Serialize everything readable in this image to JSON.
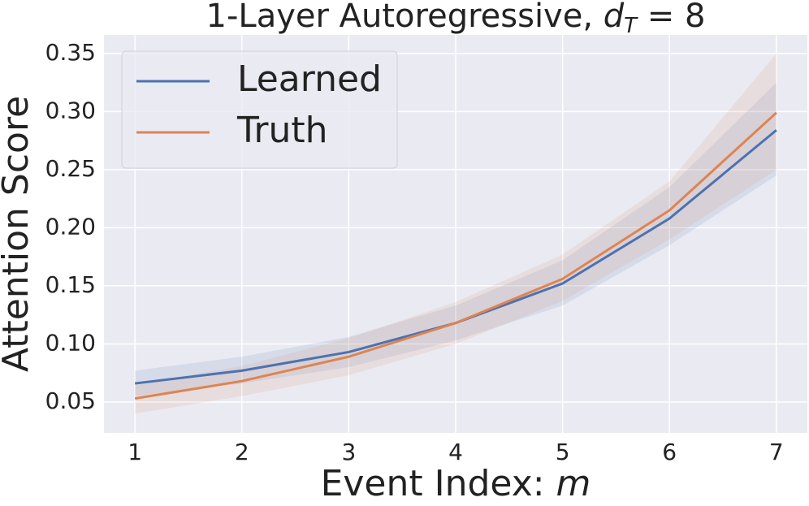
{
  "chart_data": {
    "type": "line",
    "title_parts": [
      "1-Layer Autoregressive, ",
      "d",
      "T",
      " = 8"
    ],
    "xlabel_parts": [
      "Event Index: ",
      "m"
    ],
    "ylabel": "Attention Score",
    "x": [
      1,
      2,
      3,
      4,
      5,
      6,
      7
    ],
    "series": [
      {
        "name": "Learned",
        "color": "#4c72b0",
        "values": [
          0.066,
          0.077,
          0.093,
          0.118,
          0.152,
          0.208,
          0.284
        ],
        "lower": [
          0.055,
          0.066,
          0.08,
          0.103,
          0.133,
          0.185,
          0.245
        ],
        "upper": [
          0.077,
          0.089,
          0.106,
          0.133,
          0.172,
          0.235,
          0.325
        ]
      },
      {
        "name": "Truth",
        "color": "#dd8452",
        "values": [
          0.053,
          0.068,
          0.089,
          0.118,
          0.156,
          0.215,
          0.299
        ],
        "lower": [
          0.04,
          0.055,
          0.073,
          0.1,
          0.137,
          0.19,
          0.25
        ],
        "upper": [
          0.065,
          0.081,
          0.105,
          0.136,
          0.177,
          0.24,
          0.35
        ]
      }
    ],
    "xlim": [
      0.71,
      7.29
    ],
    "ylim": [
      0.0234,
      0.366
    ],
    "xticks": [
      1,
      2,
      3,
      4,
      5,
      6,
      7
    ],
    "yticks": [
      0.05,
      {
        "value": 0.1,
        "label": "0.10"
      },
      0.15,
      {
        "value": 0.2,
        "label": "0.20"
      },
      0.25,
      {
        "value": 0.3,
        "label": "0.30"
      },
      0.35
    ],
    "grid": true,
    "legend": "upper left"
  }
}
